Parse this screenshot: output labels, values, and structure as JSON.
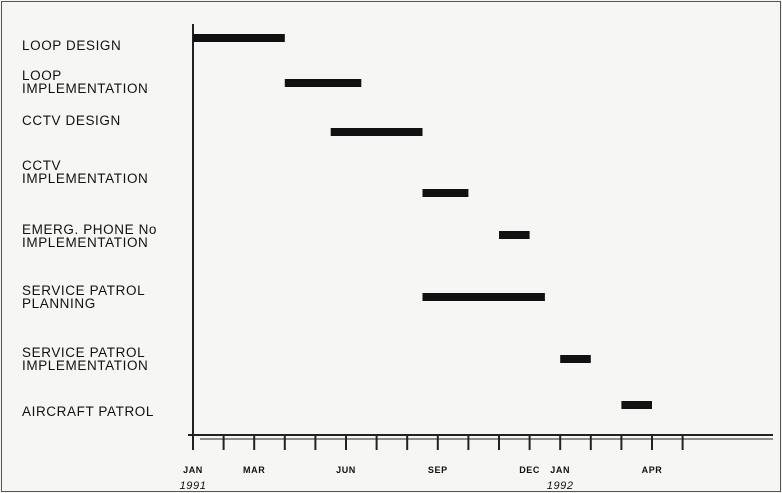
{
  "chart_data": {
    "type": "gantt",
    "title": "",
    "xlabel": "",
    "ylabel": "",
    "x_unit": "month",
    "xlim": [
      "1991-01",
      "1992-05"
    ],
    "grid": false,
    "tasks": [
      {
        "label": "LOOP DESIGN",
        "start": "1991-01",
        "end": "1991-04"
      },
      {
        "label": "LOOP\nIMPLEMENTATION",
        "start": "1991-04",
        "end": "1991-06.5"
      },
      {
        "label": "CCTV DESIGN",
        "start": "1991-05.5",
        "end": "1991-08.5"
      },
      {
        "label": "CCTV\nIMPLEMENTATION",
        "start": "1991-08.5",
        "end": "1991-10"
      },
      {
        "label": "EMERG. PHONE No\nIMPLEMENTATION",
        "start": "1991-11",
        "end": "1991-12"
      },
      {
        "label": "SERVICE PATROL\nPLANNING",
        "start": "1991-08.5",
        "end": "1991-12.5"
      },
      {
        "label": "SERVICE PATROL\nIMPLEMENTATION",
        "start": "1992-01",
        "end": "1992-02"
      },
      {
        "label": "AIRCRAFT PATROL",
        "start": "1992-03",
        "end": "1992-04"
      }
    ],
    "task_values": [
      [
        0,
        3
      ],
      [
        3,
        5.5
      ],
      [
        4.5,
        7.5
      ],
      [
        7.5,
        9
      ],
      [
        10,
        11
      ],
      [
        7.5,
        11.5
      ],
      [
        12,
        13
      ],
      [
        14,
        15
      ]
    ],
    "tick_labels": [
      {
        "month_index": 0,
        "text": "JAN"
      },
      {
        "month_index": 2,
        "text": "MAR"
      },
      {
        "month_index": 5,
        "text": "JUN"
      },
      {
        "month_index": 8,
        "text": "SEP"
      },
      {
        "month_index": 11,
        "text": "DEC"
      },
      {
        "month_index": 12,
        "text": "JAN"
      },
      {
        "month_index": 15,
        "text": "APR"
      }
    ],
    "tick_count": 17,
    "year_labels": [
      {
        "month_index": 0,
        "text": "1991"
      },
      {
        "month_index": 12,
        "text": "1992"
      }
    ]
  },
  "colors": {
    "bar": "#111111",
    "axis": "#222222",
    "background": "#f6f6f4"
  }
}
